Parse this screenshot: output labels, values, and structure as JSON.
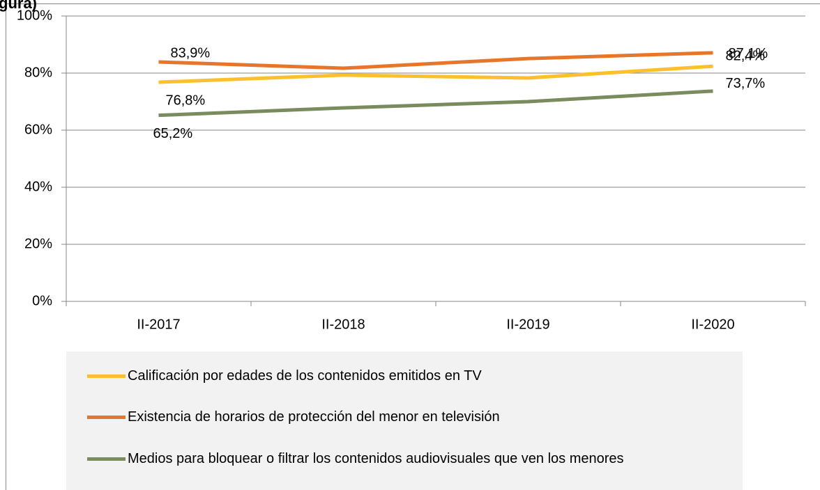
{
  "chart_data": {
    "type": "line",
    "title": "gura)",
    "categories": [
      "II-2017",
      "II-2018",
      "II-2019",
      "II-2020"
    ],
    "series": [
      {
        "name": "Calificación por edades de los contenidos emitidos en TV",
        "color": "#fcc02e",
        "values": [
          76.8,
          79.3,
          78.3,
          82.4
        ],
        "value_labels": [
          "76,8%",
          null,
          null,
          "82,4%"
        ]
      },
      {
        "name": "Existencia de horarios de protección del menor en televisión",
        "color": "#e8762a",
        "values": [
          83.9,
          81.7,
          85.1,
          87.1
        ],
        "value_labels": [
          "83,9%",
          null,
          null,
          "87,1%"
        ]
      },
      {
        "name": "Medios para bloquear o filtrar los contenidos audiovisuales que ven los menores",
        "color": "#7a8b5e",
        "values": [
          65.2,
          67.8,
          70.0,
          73.7
        ],
        "value_labels": [
          "65,2%",
          null,
          null,
          "73,7%"
        ]
      }
    ],
    "ylim": [
      0,
      100
    ],
    "yticks": [
      {
        "value": 0,
        "label": "0%"
      },
      {
        "value": 20,
        "label": "20%"
      },
      {
        "value": 40,
        "label": "40%"
      },
      {
        "value": 60,
        "label": "60%"
      },
      {
        "value": 80,
        "label": "80%"
      },
      {
        "value": 100,
        "label": "100%"
      }
    ],
    "grid": true,
    "legend": "bottom"
  }
}
